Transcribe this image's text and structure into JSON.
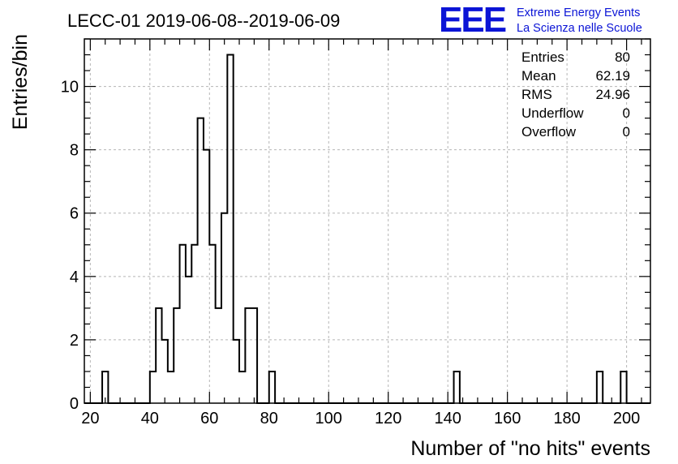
{
  "title": "LECC-01 2019-06-08--2019-06-09",
  "logo": {
    "letters": "EEE",
    "line1": "Extreme Energy Events",
    "line2": "La Scienza nelle Scuole",
    "color": "#0b14d6"
  },
  "stats": [
    {
      "label": "Entries",
      "value": "80"
    },
    {
      "label": "Mean",
      "value": "62.19"
    },
    {
      "label": "RMS",
      "value": "24.96"
    },
    {
      "label": "Underflow",
      "value": "0"
    },
    {
      "label": "Overflow",
      "value": "0"
    }
  ],
  "chart_data": {
    "type": "bar",
    "histogram": true,
    "xlabel": "Number of \"no hits\" events",
    "ylabel": "Entries/bin",
    "xlim": [
      18,
      208
    ],
    "ylim": [
      0,
      11.5
    ],
    "bin_width": 2,
    "xticks": [
      20,
      40,
      60,
      80,
      100,
      120,
      140,
      160,
      180,
      200
    ],
    "yticks": [
      0,
      2,
      4,
      6,
      8,
      10
    ],
    "grid": true,
    "bins": [
      {
        "x": 24,
        "y": 1
      },
      {
        "x": 40,
        "y": 1
      },
      {
        "x": 42,
        "y": 3
      },
      {
        "x": 44,
        "y": 2
      },
      {
        "x": 46,
        "y": 1
      },
      {
        "x": 48,
        "y": 3
      },
      {
        "x": 50,
        "y": 5
      },
      {
        "x": 52,
        "y": 4
      },
      {
        "x": 54,
        "y": 5
      },
      {
        "x": 56,
        "y": 9
      },
      {
        "x": 58,
        "y": 8
      },
      {
        "x": 60,
        "y": 5
      },
      {
        "x": 62,
        "y": 3
      },
      {
        "x": 64,
        "y": 6
      },
      {
        "x": 66,
        "y": 11
      },
      {
        "x": 68,
        "y": 2
      },
      {
        "x": 70,
        "y": 1
      },
      {
        "x": 72,
        "y": 3
      },
      {
        "x": 74,
        "y": 3
      },
      {
        "x": 80,
        "y": 1
      },
      {
        "x": 142,
        "y": 1
      },
      {
        "x": 190,
        "y": 1
      },
      {
        "x": 198,
        "y": 1
      }
    ]
  }
}
